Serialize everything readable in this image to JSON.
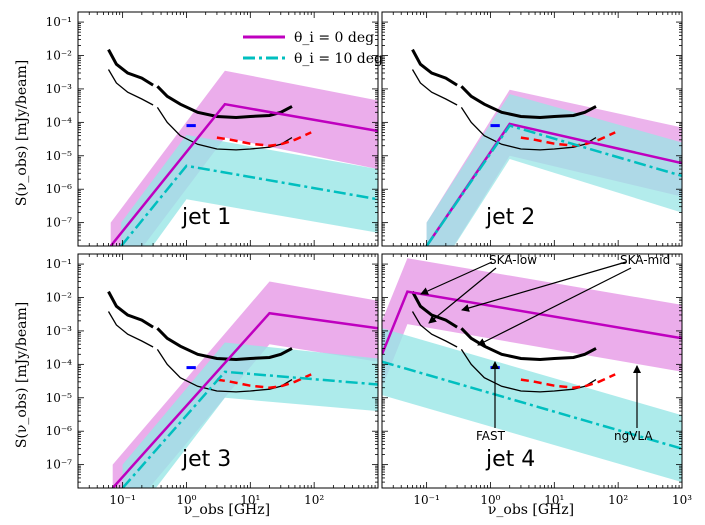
{
  "chart_data": {
    "type": "line",
    "layout": "2x2 panels sharing x and y axes",
    "xlabel": "ν_obs [GHz]",
    "ylabel": "S(ν_obs) [mJy/beam]",
    "xscale": "log",
    "yscale": "log",
    "xlim": [
      0.02,
      1000
    ],
    "ylim": [
      2e-08,
      0.2
    ],
    "x_ticks": [
      {
        "value": 0.1,
        "label": "10⁻¹"
      },
      {
        "value": 1,
        "label": "10⁰"
      },
      {
        "value": 10,
        "label": "10¹"
      },
      {
        "value": 100,
        "label": "10²"
      },
      {
        "value": 1000,
        "label": "10³"
      }
    ],
    "y_ticks": [
      {
        "value": 1e-07,
        "label": "10⁻⁷"
      },
      {
        "value": 1e-06,
        "label": "10⁻⁶"
      },
      {
        "value": 1e-05,
        "label": "10⁻⁵"
      },
      {
        "value": 0.0001,
        "label": "10⁻⁴"
      },
      {
        "value": 0.001,
        "label": "10⁻³"
      },
      {
        "value": 0.01,
        "label": "10⁻²"
      },
      {
        "value": 0.1,
        "label": "10⁻¹"
      }
    ],
    "legend": {
      "placement": "top-right of first panel",
      "entries": [
        {
          "label": "θ_i = 0 deg",
          "color": "#bf00bf",
          "style": "solid"
        },
        {
          "label": "θ_i = 10 deg",
          "color": "#00bfbf",
          "style": "dashdot"
        }
      ]
    },
    "colors": {
      "theta0": "#bf00bf",
      "theta0_band": "#e699e6",
      "theta10": "#00bfbf",
      "theta10_band": "#99e6e6",
      "ngvla": "#ff0000",
      "fast": "#0000ff",
      "ska_low": "#000000",
      "ska_mid": "#000000"
    },
    "instruments": {
      "ska_low_upper": {
        "x": [
          0.06,
          0.08,
          0.12,
          0.2,
          0.3
        ],
        "y": [
          0.015,
          0.0055,
          0.003,
          0.0021,
          0.0013
        ]
      },
      "ska_low_lower": {
        "x": [
          0.06,
          0.08,
          0.12,
          0.2,
          0.3
        ],
        "y": [
          0.0038,
          0.0015,
          0.0008,
          0.0005,
          0.00033
        ]
      },
      "ska_mid_upper": {
        "x": [
          0.35,
          0.5,
          0.8,
          1.5,
          3,
          6,
          10,
          20,
          30,
          45
        ],
        "y": [
          0.0012,
          0.0006,
          0.00035,
          0.0002,
          0.00015,
          0.00014,
          0.00015,
          0.00016,
          0.0002,
          0.0003
        ]
      },
      "ska_mid_lower": {
        "x": [
          0.35,
          0.5,
          0.8,
          1.5,
          3,
          6,
          10,
          20,
          30,
          45
        ],
        "y": [
          0.00028,
          0.0001,
          4e-05,
          2.2e-05,
          1.6e-05,
          1.5e-05,
          1.6e-05,
          1.8e-05,
          2.2e-05,
          3.5e-05
        ]
      },
      "fast": {
        "x": [
          1.0,
          1.4
        ],
        "y": [
          8e-05,
          8e-05
        ]
      },
      "ngvla": {
        "x": [
          3,
          5,
          10,
          20,
          30,
          50,
          90
        ],
        "y": [
          3.5e-05,
          3e-05,
          2.3e-05,
          2e-05,
          2.2e-05,
          3e-05,
          5e-05
        ]
      }
    },
    "panels": [
      {
        "label": "jet 1",
        "series": [
          {
            "x": [
              0.065,
              4,
              1000
            ],
            "y": [
              2e-08,
              0.00035,
              5.5e-05
            ],
            "band_low": [
              1e-09,
              3.5e-05,
              4e-06
            ],
            "band_high": [
              1e-07,
              0.0035,
              0.00045
            ]
          },
          {
            "x": [
              0.095,
              1,
              1000
            ],
            "y": [
              2e-08,
              5e-06,
              5e-07
            ],
            "band_low": [
              1e-09,
              5e-07,
              5e-08
            ],
            "band_high": [
              1e-07,
              4.2e-05,
              4e-06
            ]
          }
        ]
      },
      {
        "label": "jet 2",
        "series": [
          {
            "x": [
              0.1,
              2,
              1000
            ],
            "y": [
              2e-08,
              9e-05,
              6e-06
            ],
            "band_low": [
              1e-09,
              1e-05,
              6e-07
            ],
            "band_high": [
              1e-07,
              0.00095,
              7e-05
            ]
          },
          {
            "x": [
              0.1,
              2,
              1000
            ],
            "y": [
              2e-08,
              8e-05,
              2.5e-06
            ],
            "band_low": [
              1e-09,
              8e-06,
              2e-07
            ],
            "band_high": [
              1e-07,
              0.0007,
              2.5e-05
            ]
          }
        ]
      },
      {
        "label": "jet 3",
        "series": [
          {
            "x": [
              0.07,
              20,
              1000
            ],
            "y": [
              2e-08,
              0.0034,
              0.0012
            ],
            "band_low": [
              1e-09,
              0.0004,
              0.00012
            ],
            "band_high": [
              1e-07,
              0.03,
              0.008
            ]
          },
          {
            "x": [
              0.1,
              4,
              1000
            ],
            "y": [
              2e-08,
              6e-05,
              2.5e-05
            ],
            "band_low": [
              1e-09,
              1e-05,
              4e-06
            ],
            "band_high": [
              1e-07,
              0.00045,
              0.00015
            ]
          }
        ]
      },
      {
        "label": "jet 4",
        "series": [
          {
            "x": [
              0.02,
              0.05,
              1000
            ],
            "y": [
              0.0002,
              0.015,
              0.0006
            ],
            "band_low": [
              2e-05,
              0.0016,
              6e-05
            ],
            "band_high": [
              0.002,
              0.15,
              0.006
            ]
          },
          {
            "x": [
              0.02,
              1000
            ],
            "y": [
              0.00012,
              3e-07
            ],
            "band_low": [
              1.2e-05,
              3e-08
            ],
            "band_high": [
              0.0012,
              3e-06
            ]
          }
        ],
        "annotations": [
          "SKA-low",
          "SKA-mid",
          "FAST",
          "ngVLA"
        ]
      }
    ]
  }
}
